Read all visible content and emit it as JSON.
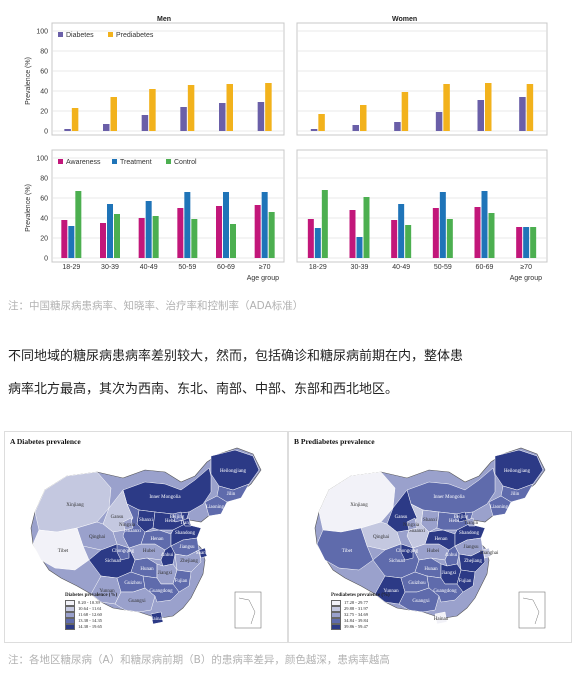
{
  "charts": {
    "col_titles": [
      "Men",
      "Women"
    ],
    "prevalence_ylabel": "Prevalence (%)",
    "xlabel": "Age group",
    "categories": [
      "18-29",
      "30-39",
      "40-49",
      "50-59",
      "60-69",
      "≥70"
    ],
    "prevalence_legend": [
      "Diabetes",
      "Prediabetes"
    ],
    "control_legend": [
      "Awareness",
      "Treatment",
      "Control"
    ],
    "colors": {
      "diabetes": "#6a5fa8",
      "prediabetes": "#f2b21c",
      "awareness": "#c2177a",
      "treatment": "#1f74b8",
      "control": "#4caf50"
    }
  },
  "chart_data": [
    {
      "type": "bar",
      "title": "Men",
      "ylabel": "Prevalence (%)",
      "ylim": [
        0,
        100
      ],
      "categories": [
        "18-29",
        "30-39",
        "40-49",
        "50-59",
        "60-69",
        "≥70"
      ],
      "series": [
        {
          "name": "Diabetes",
          "values": [
            2,
            7,
            16,
            24,
            28,
            29
          ]
        },
        {
          "name": "Prediabetes",
          "values": [
            23,
            34,
            42,
            46,
            47,
            48
          ]
        }
      ]
    },
    {
      "type": "bar",
      "title": "Women",
      "ylim": [
        0,
        100
      ],
      "categories": [
        "18-29",
        "30-39",
        "40-49",
        "50-59",
        "60-69",
        "≥70"
      ],
      "series": [
        {
          "name": "Diabetes",
          "values": [
            2,
            6,
            9,
            19,
            31,
            34
          ]
        },
        {
          "name": "Prediabetes",
          "values": [
            17,
            26,
            39,
            47,
            48,
            47
          ]
        }
      ]
    },
    {
      "type": "bar",
      "ylabel": "Prevalence (%)",
      "xlabel": "Age group",
      "ylim": [
        0,
        100
      ],
      "categories": [
        "18-29",
        "30-39",
        "40-49",
        "50-59",
        "60-69",
        "≥70"
      ],
      "series": [
        {
          "name": "Awareness",
          "values": [
            38,
            35,
            40,
            50,
            52,
            53
          ]
        },
        {
          "name": "Treatment",
          "values": [
            32,
            54,
            57,
            66,
            66,
            66
          ]
        },
        {
          "name": "Control",
          "values": [
            67,
            44,
            42,
            39,
            34,
            46
          ]
        }
      ]
    },
    {
      "type": "bar",
      "xlabel": "Age group",
      "ylim": [
        0,
        100
      ],
      "categories": [
        "18-29",
        "30-39",
        "40-49",
        "50-59",
        "60-69",
        "≥70"
      ],
      "series": [
        {
          "name": "Awareness",
          "values": [
            39,
            48,
            38,
            50,
            51,
            31
          ]
        },
        {
          "name": "Treatment",
          "values": [
            30,
            21,
            54,
            66,
            67,
            31
          ]
        },
        {
          "name": "Control",
          "values": [
            68,
            61,
            33,
            39,
            45,
            31
          ]
        }
      ]
    }
  ],
  "note1": "注：中国糖尿病患病率、知晓率、治疗率和控制率（ADA标准）",
  "para_line1": "不同地域的糖尿病患病率差别较大，然而，包括确诊和糖尿病前期在内，整体患",
  "para_line2": "病率北方最高，其次为西南、东北、南部、中部、东部和西北地区。",
  "maps": {
    "a_title": "A  Diabetes prevalence",
    "b_title": "B  Prediabetes prevalence",
    "a_legend_title": "Diabetes prevalence (%)",
    "b_legend_title": "Prediabetes prevalence (%)",
    "a_legend": [
      "8.20 - 10.39",
      "10.64 - 11.61",
      "11.68 - 12.60",
      "13.38 - 14.35",
      "14.38 - 19.65"
    ],
    "b_legend": [
      "17.28 - 29.77",
      "29.88 - 31.97",
      "32.75 - 34.69",
      "34.84 - 39.84",
      "39.86 - 59.47"
    ],
    "shades": [
      "#f2f2f8",
      "#c4c8e0",
      "#9aa1cc",
      "#5f6bac",
      "#2c3a86"
    ],
    "provinces": [
      "Heilongjiang",
      "Jilin",
      "Liaoning",
      "Inner Mongolia",
      "Xinjiang",
      "Gansu",
      "Qinghai",
      "Tibet",
      "Sichuan",
      "Yunnan",
      "Guizhou",
      "Guangxi",
      "Hunan",
      "Hubei",
      "Henan",
      "Shanxi",
      "Shaanxi",
      "Hebei",
      "Shandong",
      "Jiangsu",
      "Anhui",
      "Zhejiang",
      "Jiangxi",
      "Fujian",
      "Guangdong",
      "Hainan",
      "Shanghai",
      "Beijing",
      "Tianjin",
      "Ningxia",
      "Chongqing"
    ]
  },
  "note2": "注：各地区糖尿病（A）和糖尿病前期（B）的患病率差异，颜色越深，患病率越高"
}
